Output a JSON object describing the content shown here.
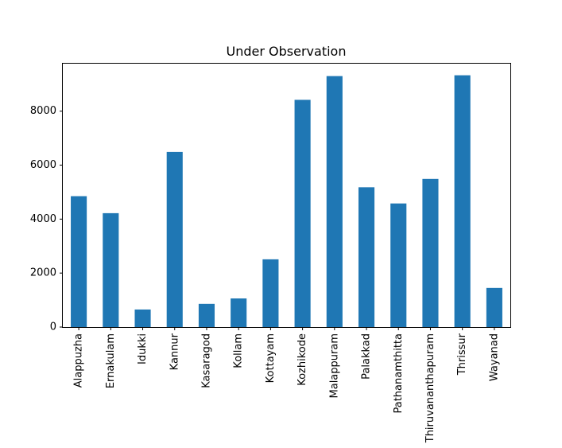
{
  "chart_data": {
    "type": "bar",
    "title": "Under Observation",
    "xlabel": "",
    "ylabel": "",
    "categories": [
      "Alappuzha",
      "Ernakulam",
      "Idukki",
      "Kannur",
      "Kasaragod",
      "Kollam",
      "Kottayam",
      "Kozhikode",
      "Malappuram",
      "Palakkad",
      "Pathanamthitta",
      "Thiruvananthapuram",
      "Thrissur",
      "Wayanad"
    ],
    "values": [
      4850,
      4220,
      650,
      6490,
      860,
      1060,
      2510,
      8420,
      9300,
      5180,
      4580,
      5490,
      9330,
      1450
    ],
    "yticks": [
      0,
      2000,
      4000,
      6000,
      8000
    ],
    "ylim": [
      0,
      9790
    ],
    "bar_color": "#1f77b4",
    "grid": false,
    "legend": "none"
  }
}
